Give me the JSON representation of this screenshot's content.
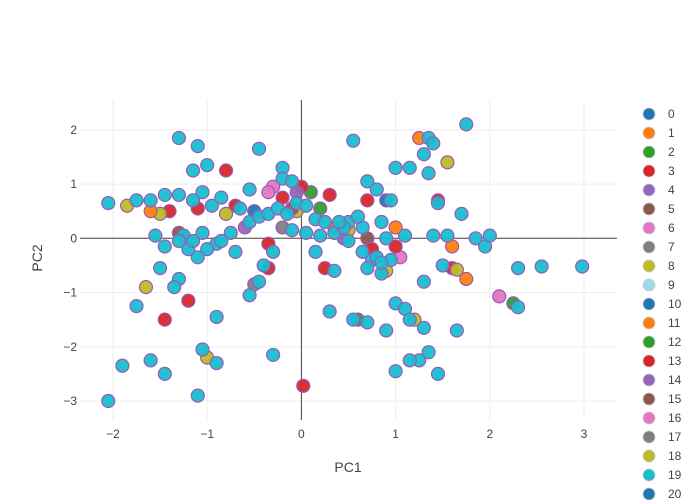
{
  "chart_data": {
    "type": "scatter",
    "xlabel": "PC1",
    "ylabel": "PC2",
    "xlim": [
      -2.35,
      3.35
    ],
    "ylim": [
      -3.35,
      2.55
    ],
    "x_ticks": [
      -2,
      -1,
      0,
      1,
      2,
      3
    ],
    "x_tick_labels": [
      "−2",
      "−1",
      "0",
      "1",
      "2",
      "3"
    ],
    "y_ticks": [
      -3,
      -2,
      -1,
      0,
      1,
      2
    ],
    "y_tick_labels": [
      "−3",
      "−2",
      "−1",
      "0",
      "1",
      "2"
    ],
    "grid": true,
    "zero_lines": true,
    "legend_position": "right",
    "marker_outline_color": "#9b59b6",
    "series": [
      {
        "name": "0",
        "color": "#1f77b4",
        "points": [
          [
            0.9,
            0.7
          ],
          [
            -0.5,
            0.5
          ]
        ]
      },
      {
        "name": "1",
        "color": "#ff7f0e",
        "points": [
          [
            1.0,
            0.2
          ],
          [
            1.75,
            -0.75
          ]
        ]
      },
      {
        "name": "2",
        "color": "#2ca02c",
        "points": [
          [
            0.1,
            0.85
          ],
          [
            2.25,
            -1.2
          ],
          [
            0.6,
            -1.5
          ]
        ]
      },
      {
        "name": "3",
        "color": "#d62728",
        "points": [
          [
            -1.45,
            -1.5
          ],
          [
            -1.2,
            -1.15
          ],
          [
            -0.8,
            1.25
          ],
          [
            0.0,
            0.95
          ],
          [
            0.25,
            -0.55
          ],
          [
            -1.4,
            0.5
          ],
          [
            -0.35,
            -0.1
          ],
          [
            0.02,
            -2.72
          ],
          [
            1.6,
            -0.55
          ],
          [
            1.45,
            0.7
          ],
          [
            0.7,
            0.7
          ],
          [
            -0.7,
            0.6
          ]
        ]
      },
      {
        "name": "4",
        "color": "#9467bd",
        "points": [
          [
            -0.05,
            0.85
          ],
          [
            0.45,
            0.0
          ]
        ]
      },
      {
        "name": "5",
        "color": "#8c564b",
        "points": [
          [
            -1.3,
            0.1
          ],
          [
            0.7,
            0.0
          ]
        ]
      },
      {
        "name": "6",
        "color": "#e377c2",
        "points": [
          [
            -0.3,
            0.95
          ],
          [
            2.1,
            -1.07
          ],
          [
            1.05,
            -0.35
          ]
        ]
      },
      {
        "name": "7",
        "color": "#7f7f7f",
        "points": [
          [
            -0.2,
            0.2
          ]
        ]
      },
      {
        "name": "8",
        "color": "#bcbd22",
        "points": [
          [
            -1.65,
            -0.9
          ],
          [
            1.65,
            -0.58
          ],
          [
            -1.0,
            -2.2
          ],
          [
            -1.5,
            0.45
          ],
          [
            1.55,
            1.4
          ],
          [
            -0.05,
            0.5
          ]
        ]
      },
      {
        "name": "9",
        "color": "#9edae5",
        "points": []
      },
      {
        "name": "10",
        "color": "#1f77b4",
        "points": []
      },
      {
        "name": "11",
        "color": "#ff7f0e",
        "points": [
          [
            1.25,
            1.85
          ],
          [
            1.6,
            -0.15
          ],
          [
            0.35,
            0.2
          ],
          [
            -1.6,
            0.5
          ]
        ]
      },
      {
        "name": "12",
        "color": "#2ca02c",
        "points": [
          [
            0.2,
            0.55
          ]
        ]
      },
      {
        "name": "13",
        "color": "#d62728",
        "points": [
          [
            -1.1,
            0.55
          ],
          [
            0.75,
            -0.2
          ],
          [
            -0.2,
            0.75
          ],
          [
            -0.35,
            -0.55
          ],
          [
            1.0,
            -0.15
          ],
          [
            0.3,
            0.8
          ]
        ]
      },
      {
        "name": "14",
        "color": "#9467bd",
        "points": [
          [
            -0.6,
            0.2
          ]
        ]
      },
      {
        "name": "15",
        "color": "#8c564b",
        "points": [
          [
            -0.1,
            0.55
          ]
        ]
      },
      {
        "name": "16",
        "color": "#e377c2",
        "points": [
          [
            -0.35,
            0.85
          ]
        ]
      },
      {
        "name": "17",
        "color": "#7f7f7f",
        "points": [
          [
            -0.5,
            -0.85
          ]
        ]
      },
      {
        "name": "18",
        "color": "#bcbd22",
        "points": [
          [
            -1.85,
            0.6
          ],
          [
            0.9,
            -0.6
          ],
          [
            1.2,
            -1.5
          ],
          [
            -0.8,
            0.45
          ],
          [
            0.5,
            0.15
          ]
        ]
      },
      {
        "name": "19",
        "color": "#17becf",
        "points": [
          [
            -1.3,
            1.85
          ],
          [
            -1.1,
            1.7
          ],
          [
            -0.45,
            1.65
          ],
          [
            -1.0,
            1.35
          ],
          [
            -0.2,
            1.3
          ],
          [
            0.55,
            1.8
          ],
          [
            0.7,
            1.05
          ],
          [
            1.35,
            1.85
          ],
          [
            1.75,
            2.1
          ],
          [
            1.4,
            1.75
          ],
          [
            1.3,
            1.55
          ],
          [
            1.35,
            1.2
          ],
          [
            1.15,
            1.3
          ],
          [
            0.8,
            0.9
          ],
          [
            0.95,
            0.7
          ],
          [
            1.0,
            1.3
          ],
          [
            1.45,
            0.65
          ],
          [
            1.7,
            0.45
          ],
          [
            1.85,
            0.0
          ],
          [
            1.95,
            -0.15
          ],
          [
            2.0,
            0.05
          ],
          [
            2.3,
            -0.55
          ],
          [
            2.55,
            -0.52
          ],
          [
            2.98,
            -0.52
          ],
          [
            2.3,
            -1.27
          ],
          [
            0.5,
            0.3
          ],
          [
            0.65,
            0.2
          ],
          [
            0.85,
            0.3
          ],
          [
            0.9,
            0.0
          ],
          [
            0.75,
            -0.4
          ],
          [
            0.7,
            -0.55
          ],
          [
            0.85,
            -0.65
          ],
          [
            0.35,
            -0.6
          ],
          [
            1.0,
            -1.2
          ],
          [
            1.1,
            -1.3
          ],
          [
            1.15,
            -1.5
          ],
          [
            1.3,
            -1.65
          ],
          [
            1.35,
            -2.1
          ],
          [
            1.25,
            -2.25
          ],
          [
            1.15,
            -2.25
          ],
          [
            1.0,
            -2.45
          ],
          [
            1.45,
            -2.5
          ],
          [
            1.65,
            -1.7
          ],
          [
            0.9,
            -1.7
          ],
          [
            0.7,
            -1.55
          ],
          [
            0.55,
            -1.5
          ],
          [
            0.3,
            -1.35
          ],
          [
            0.15,
            -0.25
          ],
          [
            -0.55,
            -1.05
          ],
          [
            -0.9,
            -1.45
          ],
          [
            -0.9,
            -2.3
          ],
          [
            -1.05,
            -2.05
          ],
          [
            -1.1,
            -2.9
          ],
          [
            -0.3,
            -2.15
          ],
          [
            -1.45,
            -2.5
          ],
          [
            -1.6,
            -2.25
          ],
          [
            -1.9,
            -2.35
          ],
          [
            -2.05,
            -3.0
          ],
          [
            -1.3,
            -0.75
          ],
          [
            -1.35,
            -0.9
          ],
          [
            -1.75,
            -1.25
          ],
          [
            -1.5,
            -0.55
          ],
          [
            -1.45,
            -0.15
          ],
          [
            -1.55,
            0.05
          ],
          [
            -1.6,
            0.7
          ],
          [
            -1.75,
            0.7
          ],
          [
            -2.05,
            0.65
          ],
          [
            -1.45,
            0.8
          ],
          [
            -1.3,
            0.8
          ],
          [
            -1.15,
            0.7
          ],
          [
            -1.05,
            0.85
          ],
          [
            -0.95,
            0.6
          ],
          [
            -0.85,
            0.75
          ],
          [
            -0.75,
            0.1
          ],
          [
            -0.65,
            0.55
          ],
          [
            -0.55,
            0.3
          ],
          [
            -0.45,
            0.4
          ],
          [
            -0.35,
            0.45
          ],
          [
            -0.25,
            0.55
          ],
          [
            -0.15,
            0.45
          ],
          [
            -0.05,
            0.65
          ],
          [
            0.05,
            0.6
          ],
          [
            0.15,
            0.35
          ],
          [
            0.25,
            0.3
          ],
          [
            0.35,
            0.1
          ],
          [
            0.45,
            0.2
          ],
          [
            -0.9,
            -0.1
          ],
          [
            -1.0,
            -0.2
          ],
          [
            -1.1,
            -0.35
          ],
          [
            -1.2,
            -0.2
          ],
          [
            -1.25,
            0.05
          ],
          [
            -0.7,
            -0.25
          ],
          [
            -0.4,
            -0.5
          ],
          [
            -0.3,
            -0.25
          ],
          [
            0.05,
            0.1
          ],
          [
            -0.1,
            0.15
          ],
          [
            -0.2,
            1.1
          ],
          [
            -0.1,
            1.05
          ],
          [
            -1.15,
            1.25
          ],
          [
            -0.55,
            0.9
          ],
          [
            1.4,
            0.05
          ],
          [
            1.55,
            0.05
          ],
          [
            1.3,
            -0.8
          ],
          [
            1.5,
            -0.5
          ],
          [
            0.95,
            -0.4
          ],
          [
            0.8,
            -0.35
          ],
          [
            1.1,
            0.05
          ],
          [
            0.5,
            -0.05
          ],
          [
            0.6,
            0.4
          ],
          [
            0.4,
            0.3
          ],
          [
            0.2,
            0.05
          ],
          [
            -0.85,
            -0.05
          ],
          [
            -1.05,
            0.1
          ],
          [
            -1.15,
            -0.05
          ],
          [
            -1.3,
            -0.05
          ],
          [
            -0.45,
            -0.8
          ],
          [
            0.65,
            -0.25
          ],
          [
            0.85,
            -0.45
          ]
        ]
      },
      {
        "name": "20",
        "color": "#1f77b4",
        "points": []
      }
    ]
  }
}
